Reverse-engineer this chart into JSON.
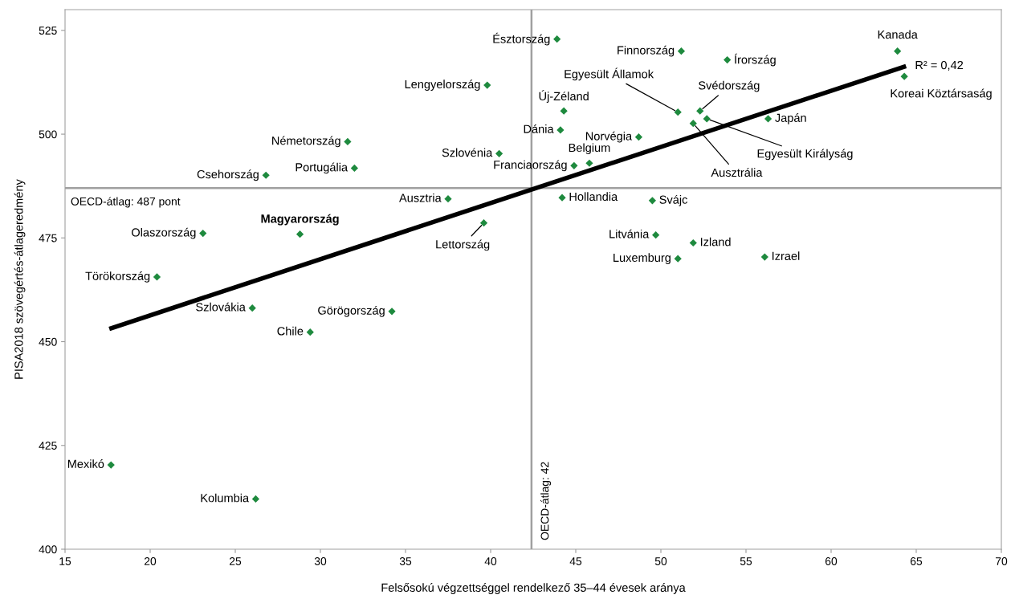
{
  "chart_data": {
    "type": "scatter",
    "xlabel": "Felsősokú végzettséggel rendelkező 35–44 évesek aránya",
    "ylabel": "PISA2018 szövegértés-átlageredmény",
    "xlim": [
      15,
      70
    ],
    "xticks": [
      15,
      20,
      25,
      30,
      35,
      40,
      45,
      50,
      55,
      60,
      65,
      70
    ],
    "ylim": [
      400,
      530
    ],
    "yticks": [
      400,
      425,
      450,
      475,
      500,
      525
    ],
    "grid": false,
    "legend": false,
    "series": [
      {
        "type": "scatter",
        "color": "#1e8a3e",
        "marker": "diamond",
        "x": [
          43.9,
          51.2,
          53.9,
          63.9,
          64.3,
          39.8,
          44.3,
          51.0,
          52.3,
          52.7,
          51.9,
          56.3,
          44.1,
          48.7,
          31.6,
          40.5,
          45.8,
          44.9,
          32.0,
          26.8,
          37.5,
          44.2,
          49.5,
          39.6,
          23.1,
          28.8,
          49.7,
          51.9,
          51.0,
          56.1,
          20.4,
          26.0,
          34.2,
          29.4,
          17.7,
          26.2
        ],
        "values": [
          522.9,
          520.0,
          517.9,
          520.0,
          513.9,
          511.8,
          505.6,
          505.3,
          505.6,
          503.7,
          502.6,
          503.7,
          501.0,
          499.3,
          498.2,
          495.3,
          493.0,
          492.4,
          491.8,
          490.1,
          484.4,
          484.7,
          484.0,
          478.6,
          476.1,
          475.9,
          475.7,
          473.8,
          470.0,
          470.4,
          465.6,
          458.1,
          457.3,
          452.3,
          420.3,
          412.1
        ]
      },
      {
        "type": "line",
        "color": "#000000",
        "x": [
          17.6,
          64.4
        ],
        "values": [
          453.1,
          516.4
        ]
      }
    ],
    "ref_lines": [
      {
        "axis": "x",
        "value": 42.4,
        "label": "OECD-átlag: 42",
        "color": "#a0a0a0"
      },
      {
        "axis": "y",
        "value": 487,
        "label": "OECD-átlag: 487 pont",
        "color": "#a0a0a0"
      }
    ],
    "annotations": [
      {
        "text": "Észtország",
        "x": 43.9,
        "y": 522.9
      },
      {
        "text": "Finnország",
        "x": 51.2,
        "y": 520.0
      },
      {
        "text": "Írország",
        "x": 53.9,
        "y": 517.9
      },
      {
        "text": "Kanada",
        "x": 63.9,
        "y": 520.0
      },
      {
        "text": "Koreai Köztársaság",
        "x": 64.3,
        "y": 513.9
      },
      {
        "text": "Lengyelország",
        "x": 39.8,
        "y": 511.8
      },
      {
        "text": "Új-Zéland",
        "x": 44.3,
        "y": 505.6
      },
      {
        "text": "Egyesült Államok",
        "x": 51.0,
        "y": 505.3
      },
      {
        "text": "Svédország",
        "x": 52.3,
        "y": 505.6
      },
      {
        "text": "Egyesült Királyság",
        "x": 52.7,
        "y": 503.7
      },
      {
        "text": "Ausztrália",
        "x": 51.9,
        "y": 502.6
      },
      {
        "text": "Japán",
        "x": 56.3,
        "y": 503.7
      },
      {
        "text": "Dánia",
        "x": 44.1,
        "y": 501.0
      },
      {
        "text": "Norvégia",
        "x": 48.7,
        "y": 499.3
      },
      {
        "text": "Németország",
        "x": 31.6,
        "y": 498.2
      },
      {
        "text": "Szlovénia",
        "x": 40.5,
        "y": 495.3
      },
      {
        "text": "Belgium",
        "x": 45.8,
        "y": 493.0
      },
      {
        "text": "Franciaország",
        "x": 44.9,
        "y": 492.4
      },
      {
        "text": "Portugália",
        "x": 32.0,
        "y": 491.8
      },
      {
        "text": "Csehország",
        "x": 26.8,
        "y": 490.1
      },
      {
        "text": "Ausztria",
        "x": 37.5,
        "y": 484.4
      },
      {
        "text": "Hollandia",
        "x": 44.2,
        "y": 484.7
      },
      {
        "text": "Svájc",
        "x": 49.5,
        "y": 484.0
      },
      {
        "text": "Lettország",
        "x": 39.6,
        "y": 478.6
      },
      {
        "text": "Olaszország",
        "x": 23.1,
        "y": 476.1
      },
      {
        "text": "Magyarország",
        "x": 28.8,
        "y": 475.9
      },
      {
        "text": "Litvánia",
        "x": 49.7,
        "y": 475.7
      },
      {
        "text": "Izland",
        "x": 51.9,
        "y": 473.8
      },
      {
        "text": "Luxemburg",
        "x": 51.0,
        "y": 470.0
      },
      {
        "text": "Izrael",
        "x": 56.1,
        "y": 470.4
      },
      {
        "text": "Törökország",
        "x": 20.4,
        "y": 465.6
      },
      {
        "text": "Szlovákia",
        "x": 26.0,
        "y": 458.1
      },
      {
        "text": "Görögország",
        "x": 34.2,
        "y": 457.3
      },
      {
        "text": "Chile",
        "x": 29.4,
        "y": 452.3
      },
      {
        "text": "Mexikó",
        "x": 17.7,
        "y": 420.3
      },
      {
        "text": "Kolumbia",
        "x": 26.2,
        "y": 412.1
      },
      {
        "text": "R² = 0,42",
        "x": 64.4,
        "y": 516.4
      }
    ]
  }
}
